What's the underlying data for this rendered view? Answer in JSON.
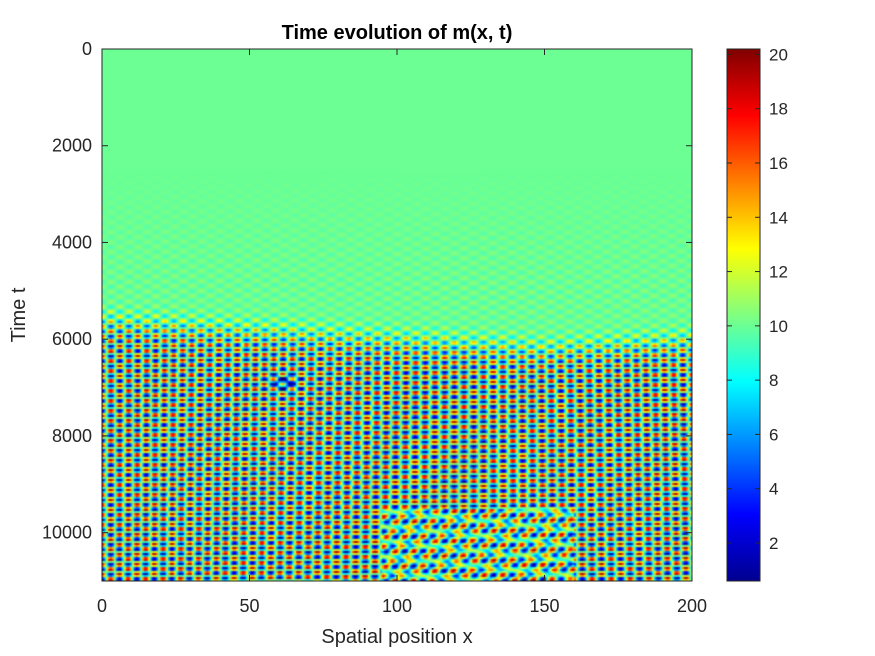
{
  "chart_data": {
    "type": "heatmap",
    "title": "Time evolution of m(x, t)",
    "xlabel": "Spatial position x",
    "ylabel": "Time t",
    "xlim": [
      0,
      200
    ],
    "ylim": [
      0,
      11000
    ],
    "y_direction": "reversed",
    "colormap": "jet",
    "clim": [
      0.6,
      20.2
    ],
    "x_ticks": [
      0,
      50,
      100,
      150,
      200
    ],
    "x_tick_labels": [
      "0",
      "50",
      "100",
      "150",
      "200"
    ],
    "y_ticks": [
      0,
      2000,
      4000,
      6000,
      8000,
      10000
    ],
    "y_tick_labels": [
      "0",
      "2000",
      "4000",
      "6000",
      "8000",
      "10000"
    ],
    "colorbar_ticks": [
      2,
      4,
      6,
      8,
      10,
      12,
      14,
      16,
      18,
      20
    ],
    "colorbar_tick_labels": [
      "2",
      "4",
      "6",
      "8",
      "10",
      "12",
      "14",
      "16",
      "18",
      "20"
    ],
    "field_description_values": {
      "uniform_state_value": 10,
      "uniform_until_t": 2500,
      "pattern_onset_t": 6000,
      "pattern_amplitude_max": 10,
      "spatial_period_x": 6.3,
      "temporal_period_t": 205
    }
  }
}
